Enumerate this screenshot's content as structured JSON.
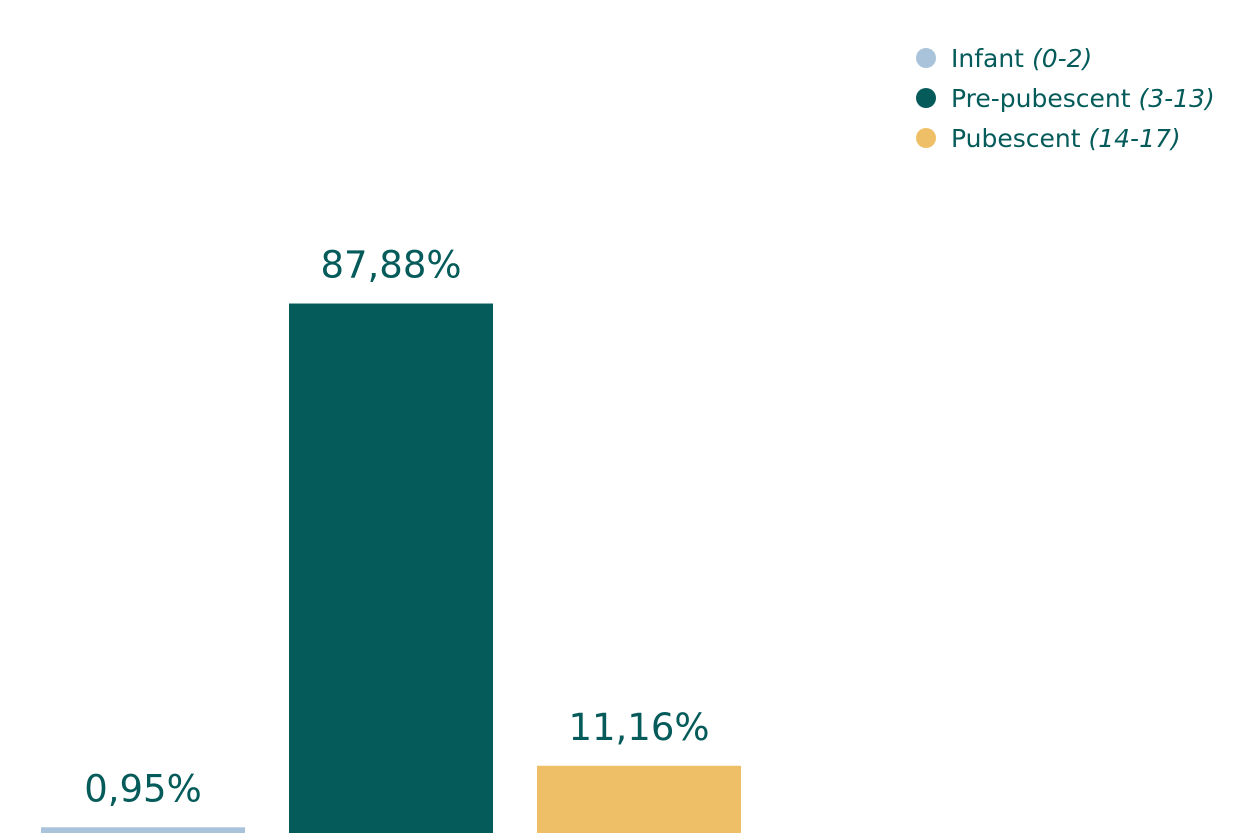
{
  "chart_data": {
    "type": "bar",
    "categories": [
      "Infant",
      "Pre-pubescent",
      "Pubescent"
    ],
    "values": [
      0.95,
      87.88,
      11.16
    ],
    "value_labels": [
      "0,95%",
      "87,88%",
      "11,16%"
    ],
    "colors": [
      "#a9c3db",
      "#045b5a",
      "#efbf67"
    ],
    "title": "",
    "xlabel": "",
    "ylabel": "",
    "ylim": [
      0,
      100
    ],
    "grid": false,
    "legend_position": "top-right",
    "legend": [
      {
        "name": "Infant",
        "range": "(0-2)",
        "color": "#a9c3db"
      },
      {
        "name": "Pre-pubescent",
        "range": "(3-13)",
        "color": "#045b5a"
      },
      {
        "name": "Pubescent",
        "range": "(14-17)",
        "color": "#efbf67"
      }
    ]
  }
}
